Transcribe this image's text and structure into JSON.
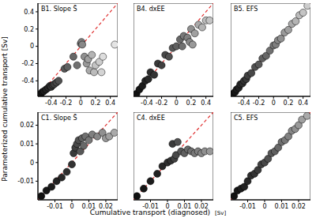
{
  "chart_data": [
    {
      "type": "scatter",
      "title": "B1. Slope S̃",
      "marker": "circle",
      "x": [
        -0.54,
        -0.52,
        -0.5,
        -0.47,
        -0.44,
        -0.42,
        -0.4,
        -0.38,
        -0.36,
        -0.33,
        -0.3,
        -0.22,
        -0.18,
        -0.1,
        -0.05,
        0,
        0.01,
        0.02,
        0.05,
        0.08,
        0.1,
        0.12,
        0.15,
        0.18,
        0.2,
        0.25,
        0.28,
        0.3,
        0.46
      ],
      "y": [
        -0.55,
        -0.53,
        -0.52,
        -0.5,
        -0.48,
        -0.46,
        -0.47,
        -0.45,
        -0.44,
        -0.42,
        -0.4,
        -0.26,
        -0.24,
        -0.12,
        -0.22,
        0.03,
        0.05,
        0.02,
        -0.12,
        -0.2,
        -0.15,
        -0.28,
        -0.1,
        -0.3,
        -0.22,
        -0.18,
        -0.3,
        -0.12,
        0.02
      ],
      "colors": [
        "#111",
        "#161616",
        "#1c1c1c",
        "#222",
        "#282828",
        "#2e2e2e",
        "#333",
        "#3a3a3a",
        "#404040",
        "#484848",
        "#505050",
        "#585858",
        "#606060",
        "#686868",
        "#707070",
        "#787878",
        "#808080",
        "#888",
        "#909090",
        "#999",
        "#a0a0a0",
        "#aaa",
        "#b4b4b4",
        "#bbb",
        "#c4c4c4",
        "#ccc",
        "#d4d4d4",
        "#ddd",
        "#e4e4e4"
      ],
      "xlim": [
        -0.58,
        0.5
      ],
      "ylim": [
        -0.58,
        0.5
      ],
      "xticks": [
        -0.4,
        -0.2,
        0,
        0.2,
        0.4
      ],
      "yticks": [
        -0.4,
        -0.2,
        0,
        0.2,
        0.4
      ]
    },
    {
      "type": "scatter",
      "title": "B4. dxEE",
      "marker": "circle",
      "tick_labels": "x",
      "x": [
        -0.54,
        -0.5,
        -0.46,
        -0.42,
        -0.38,
        -0.35,
        -0.3,
        -0.25,
        -0.2,
        -0.15,
        -0.1,
        -0.05,
        0,
        0.05,
        0.08,
        0.1,
        0.15,
        0.18,
        0.2,
        0.22,
        0.25,
        0.3,
        0.35,
        0.4,
        0.45
      ],
      "y": [
        -0.55,
        -0.5,
        -0.46,
        -0.4,
        -0.38,
        -0.3,
        -0.33,
        -0.2,
        -0.22,
        -0.1,
        -0.12,
        -0.02,
        0,
        0.08,
        0,
        0.12,
        0.1,
        0.05,
        0.2,
        0.02,
        0.15,
        0.25,
        0.22,
        0.3,
        0.3
      ],
      "colors": [
        "#111",
        "#161616",
        "#1c1c1c",
        "#222",
        "#282828",
        "#2e2e2e",
        "#333",
        "#3a3a3a",
        "#404040",
        "#484848",
        "#505050",
        "#585858",
        "#606060",
        "#686868",
        "#707070",
        "#787878",
        "#808080",
        "#888",
        "#909090",
        "#999",
        "#a0a0a0",
        "#aaa",
        "#b4b4b4",
        "#bbb",
        "#c4c4c4"
      ],
      "xlim": [
        -0.58,
        0.5
      ],
      "ylim": [
        -0.58,
        0.5
      ],
      "xticks": [
        -0.4,
        -0.2,
        0,
        0.2,
        0.4
      ],
      "yticks": [
        -0.4,
        -0.2,
        0,
        0.2,
        0.4
      ]
    },
    {
      "type": "scatter",
      "title": "B5. EFS",
      "marker": "circle",
      "tick_labels": "x",
      "x": [
        -0.55,
        -0.52,
        -0.5,
        -0.47,
        -0.45,
        -0.42,
        -0.4,
        -0.37,
        -0.35,
        -0.3,
        -0.25,
        -0.2,
        -0.15,
        -0.1,
        -0.05,
        0,
        0.03,
        0.06,
        0.1,
        0.15,
        0.2,
        0.25,
        0.3,
        0.35,
        0.4,
        0.46
      ],
      "y": [
        -0.55,
        -0.53,
        -0.5,
        -0.48,
        -0.44,
        -0.43,
        -0.4,
        -0.38,
        -0.34,
        -0.31,
        -0.24,
        -0.21,
        -0.14,
        -0.11,
        -0.05,
        0.01,
        0.02,
        0.07,
        0.09,
        0.16,
        0.19,
        0.26,
        0.29,
        0.36,
        0.39,
        0.47
      ],
      "colors": [
        "#111",
        "#161616",
        "#1c1c1c",
        "#222",
        "#282828",
        "#2e2e2e",
        "#333",
        "#3a3a3a",
        "#404040",
        "#484848",
        "#505050",
        "#585858",
        "#606060",
        "#686868",
        "#707070",
        "#787878",
        "#808080",
        "#888",
        "#909090",
        "#999",
        "#a0a0a0",
        "#aaa",
        "#b4b4b4",
        "#bbb",
        "#c4c4c4",
        "#ccc"
      ],
      "xlim": [
        -0.58,
        0.5
      ],
      "ylim": [
        -0.58,
        0.5
      ],
      "xticks": [
        -0.4,
        -0.2,
        0,
        0.2,
        0.4
      ],
      "yticks": [
        -0.4,
        -0.2,
        0,
        0.2,
        0.4
      ]
    },
    {
      "type": "scatter",
      "title": "C1. Slope S̃",
      "marker": "circle",
      "x": [
        -0.018,
        -0.015,
        -0.012,
        -0.009,
        -0.006,
        -0.003,
        0,
        0.001,
        0.002,
        0.003,
        0.004,
        0.005,
        0.006,
        0.007,
        0.008,
        0.01,
        0.012,
        0.015,
        0.018,
        0.02,
        0.022,
        0.025
      ],
      "y": [
        -0.018,
        -0.015,
        -0.013,
        -0.01,
        -0.008,
        -0.005,
        -0.001,
        0.005,
        0.008,
        0.01,
        0.012,
        0.006,
        0.013,
        0.009,
        0.014,
        0.012,
        0.015,
        0.014,
        0.016,
        0.013,
        0.014,
        0.016
      ],
      "colors": [
        "#111",
        "#161616",
        "#1c1c1c",
        "#222",
        "#282828",
        "#2e2e2e",
        "#333",
        "#3a3a3a",
        "#404040",
        "#484848",
        "#505050",
        "#585858",
        "#606060",
        "#686868",
        "#707070",
        "#787878",
        "#808080",
        "#888",
        "#909090",
        "#999",
        "#a0a0a0",
        "#aaa"
      ],
      "xlim": [
        -0.02,
        0.027
      ],
      "ylim": [
        -0.02,
        0.027
      ],
      "xticks": [
        -0.01,
        0,
        0.01,
        0.02
      ],
      "yticks": [
        -0.01,
        0,
        0.01,
        0.02
      ]
    },
    {
      "type": "scatter",
      "title": "C4. dxEE",
      "marker": "circle",
      "tick_labels": "x",
      "x": [
        -0.018,
        -0.014,
        -0.01,
        -0.006,
        -0.003,
        0,
        0.002,
        0.003,
        0.004,
        0.005,
        0.006,
        0.008,
        0.01,
        0.012,
        0.014,
        0.016,
        0.018,
        0.02,
        0.022,
        0.025
      ],
      "y": [
        -0.018,
        -0.014,
        -0.01,
        -0.006,
        -0.002,
        0,
        0.001,
        0.01,
        0.002,
        0.004,
        0.011,
        0.006,
        0.005,
        0.007,
        0.006,
        0.005,
        0.006,
        0.005,
        0.006,
        0.006
      ],
      "colors": [
        "#111",
        "#161616",
        "#1c1c1c",
        "#222",
        "#282828",
        "#2e2e2e",
        "#333",
        "#3a3a3a",
        "#404040",
        "#484848",
        "#505050",
        "#585858",
        "#606060",
        "#686868",
        "#707070",
        "#787878",
        "#808080",
        "#888",
        "#909090",
        "#999"
      ],
      "xlim": [
        -0.02,
        0.027
      ],
      "ylim": [
        -0.02,
        0.027
      ],
      "xticks": [
        -0.01,
        0,
        0.01,
        0.02
      ],
      "yticks": [
        -0.01,
        0,
        0.01,
        0.02
      ]
    },
    {
      "type": "scatter",
      "title": "C5. EFS",
      "marker": "circle",
      "tick_labels": "x",
      "x": [
        -0.018,
        -0.016,
        -0.014,
        -0.012,
        -0.01,
        -0.008,
        -0.006,
        -0.004,
        -0.002,
        0,
        0.002,
        0.004,
        0.006,
        0.008,
        0.01,
        0.012,
        0.014,
        0.016,
        0.018,
        0.02,
        0.022,
        0.025
      ],
      "y": [
        -0.018,
        -0.015,
        -0.014,
        -0.013,
        -0.01,
        -0.007,
        -0.006,
        -0.004,
        -0.001,
        0,
        0.002,
        0.005,
        0.006,
        0.008,
        0.011,
        0.012,
        0.014,
        0.017,
        0.018,
        0.02,
        0.023,
        0.025
      ],
      "colors": [
        "#111",
        "#161616",
        "#1c1c1c",
        "#222",
        "#282828",
        "#2e2e2e",
        "#333",
        "#3a3a3a",
        "#404040",
        "#484848",
        "#505050",
        "#585858",
        "#606060",
        "#686868",
        "#707070",
        "#787878",
        "#808080",
        "#888",
        "#909090",
        "#999",
        "#a0a0a0",
        "#aaa"
      ],
      "xlim": [
        -0.02,
        0.027
      ],
      "ylim": [
        -0.02,
        0.027
      ],
      "xticks": [
        -0.01,
        0,
        0.01,
        0.02
      ],
      "yticks": [
        -0.01,
        0,
        0.01,
        0.02
      ]
    }
  ],
  "x_label": "Cumulative transport (diagnosed)",
  "x_unit": "[Sv]",
  "y_label": "Parameterized cumulative transport [Sv]"
}
